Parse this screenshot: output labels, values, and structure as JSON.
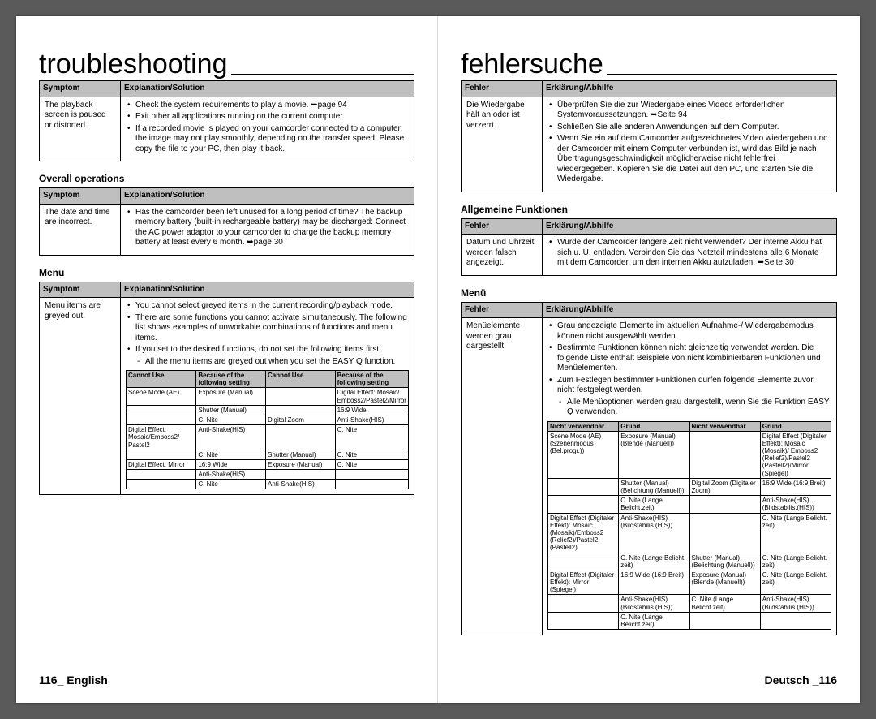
{
  "left": {
    "title": "troubleshooting",
    "footer": "116_ English",
    "t1": {
      "h1": "Symptom",
      "h2": "Explanation/Solution",
      "symptom": "The playback screen is paused or distorted.",
      "bul": [
        "Check the system requirements to play a movie. ➥page 94",
        "Exit other all applications running on the current computer.",
        "If a recorded movie is played on your camcorder connected to a computer, the image may not play smoothly, depending on the transfer speed. Please copy the file to your PC, then play it back."
      ]
    },
    "s2": "Overall operations",
    "t2": {
      "h1": "Symptom",
      "h2": "Explanation/Solution",
      "symptom": "The date and time are incorrect.",
      "bul": [
        "Has the camcorder been left unused for a long period of time? The backup memory battery (built-in rechargeable battery) may be discharged: Connect the AC power adaptor to your camcorder to charge the backup memory battery at least every 6 month. ➥page 30"
      ]
    },
    "s3": "Menu",
    "t3": {
      "h1": "Symptom",
      "h2": "Explanation/Solution",
      "symptom": "Menu items are greyed out.",
      "bul": [
        "You cannot select greyed items in the current recording/playback mode.",
        "There are some functions you cannot activate simultaneously. The following list shows examples of unworkable combinations of functions and menu items.",
        "If you set to the desired functions, do not set the following items first."
      ],
      "dash": [
        "All the menu items are greyed out when you set the EASY Q function."
      ],
      "compat": {
        "h1": "Cannot Use",
        "h2": "Because of the following setting",
        "h3": "Cannot Use",
        "h4": "Because of the following setting",
        "rows": [
          [
            "Scene Mode (AE)",
            "Exposure (Manual)",
            "",
            "Digital Effect: Mosaic/ Emboss2/Pastel2/Mirror"
          ],
          [
            "",
            "Shutter (Manual)",
            "",
            "16:9 Wide"
          ],
          [
            "",
            "C. Nite",
            "Digital Zoom",
            "Anti-Shake(HIS)"
          ],
          [
            "Digital Effect: Mosaic/Emboss2/ Pastel2",
            "Anti-Shake(HIS)",
            "",
            "C. Nite"
          ],
          [
            "",
            "C. Nite",
            "Shutter (Manual)",
            "C. Nite"
          ],
          [
            "Digital Effect: Mirror",
            "16:9 Wide",
            "Exposure (Manual)",
            "C. Nite"
          ],
          [
            "",
            "Anti-Shake(HIS)",
            "",
            ""
          ],
          [
            "",
            "C. Nite",
            "Anti-Shake(HIS)",
            ""
          ]
        ]
      }
    }
  },
  "right": {
    "title": "fehlersuche",
    "footer": "Deutsch _116",
    "t1": {
      "h1": "Fehler",
      "h2": "Erklärung/Abhilfe",
      "symptom": "Die Wiedergabe hält an oder ist verzerrt.",
      "bul": [
        "Überprüfen Sie die zur Wiedergabe eines Videos erforderlichen Systemvoraussetzungen. ➥Seite 94",
        "Schließen Sie alle anderen Anwendungen auf dem Computer.",
        "Wenn Sie ein auf dem Camcorder aufgezeichnetes Video wiedergeben und der Camcorder mit einem Computer verbunden ist, wird das Bild je nach Übertragungsgeschwindigkeit möglicherweise nicht fehlerfrei wiedergegeben. Kopieren Sie die Datei auf den PC, und starten Sie die Wiedergabe."
      ]
    },
    "s2": "Allgemeine Funktionen",
    "t2": {
      "h1": "Fehler",
      "h2": "Erklärung/Abhilfe",
      "symptom": "Datum und Uhrzeit werden falsch angezeigt.",
      "bul": [
        "Wurde der Camcorder längere Zeit nicht verwendet? Der interne Akku hat sich u. U. entladen. Verbinden Sie das Netzteil mindestens alle 6 Monate mit dem Camcorder, um den internen Akku aufzuladen. ➥Seite 30"
      ]
    },
    "s3": "Menü",
    "t3": {
      "h1": "Fehler",
      "h2": "Erklärung/Abhilfe",
      "symptom": "Menüelemente werden grau dargestellt.",
      "bul": [
        "Grau angezeigte Elemente im aktuellen Aufnahme-/ Wiedergabemodus können nicht ausgewählt werden.",
        "Bestimmte Funktionen können nicht gleichzeitig verwendet werden. Die folgende Liste enthält Beispiele von nicht kombinierbaren Funktionen und Menüelementen.",
        "Zum Festlegen bestimmter Funktionen dürfen folgende Elemente zuvor nicht festgelegt werden."
      ],
      "dash": [
        "Alle Menüoptionen werden grau dargestellt, wenn Sie die Funktion EASY Q verwenden."
      ],
      "compat": {
        "h1": "Nicht verwendbar",
        "h2": "Grund",
        "h3": "Nicht verwendbar",
        "h4": "Grund",
        "rows": [
          [
            "Scene Mode (AE) (Szenenmodus (Bel.progr.))",
            "Exposure (Manual) (Blende (Manuell))",
            "",
            "Digital Effect (Digitaler Effekt): Mosaic (Mosaik)/ Emboss2 (Relief2)/Pastel2 (Pastell2)/Mirror (Spiegel)"
          ],
          [
            "",
            "Shutter (Manual) (Belichtung (Manuell))",
            "Digital Zoom (Digitaler Zoom)",
            "16:9 Wide (16:9 Breit)"
          ],
          [
            "",
            "C. Nite (Lange Belicht.zeit)",
            "",
            "Anti-Shake(HIS) (Bildstabilis.(HIS))"
          ],
          [
            "Digital Effect (Digitaler Effekt): Mosaic (Mosaik)/Emboss2 (Relief2)/Pastel2 (Pastell2)",
            "Anti-Shake(HIS) (Bildstabilis.(HIS))",
            "",
            "C. Nite (Lange Belicht. zeit)"
          ],
          [
            "",
            "C. Nite (Lange Belicht. zeit)",
            "Shutter (Manual) (Belichtung (Manuell))",
            "C. Nite (Lange Belicht. zeit)"
          ],
          [
            "Digital Effect (Digitaler Effekt): Mirror (Spiegel)",
            "16:9 Wide (16:9 Breit)",
            "Exposure (Manual) (Blende (Manuell))",
            "C. Nite (Lange Belicht. zeit)"
          ],
          [
            "",
            "Anti-Shake(HIS) (Bildstabilis.(HIS))",
            "C. Nite (Lange Belicht.zeit)",
            "Anti-Shake(HIS) (Bildstabilis.(HIS))"
          ],
          [
            "",
            "C. Nite (Lange Belicht.zeit)",
            "",
            ""
          ]
        ]
      }
    }
  }
}
